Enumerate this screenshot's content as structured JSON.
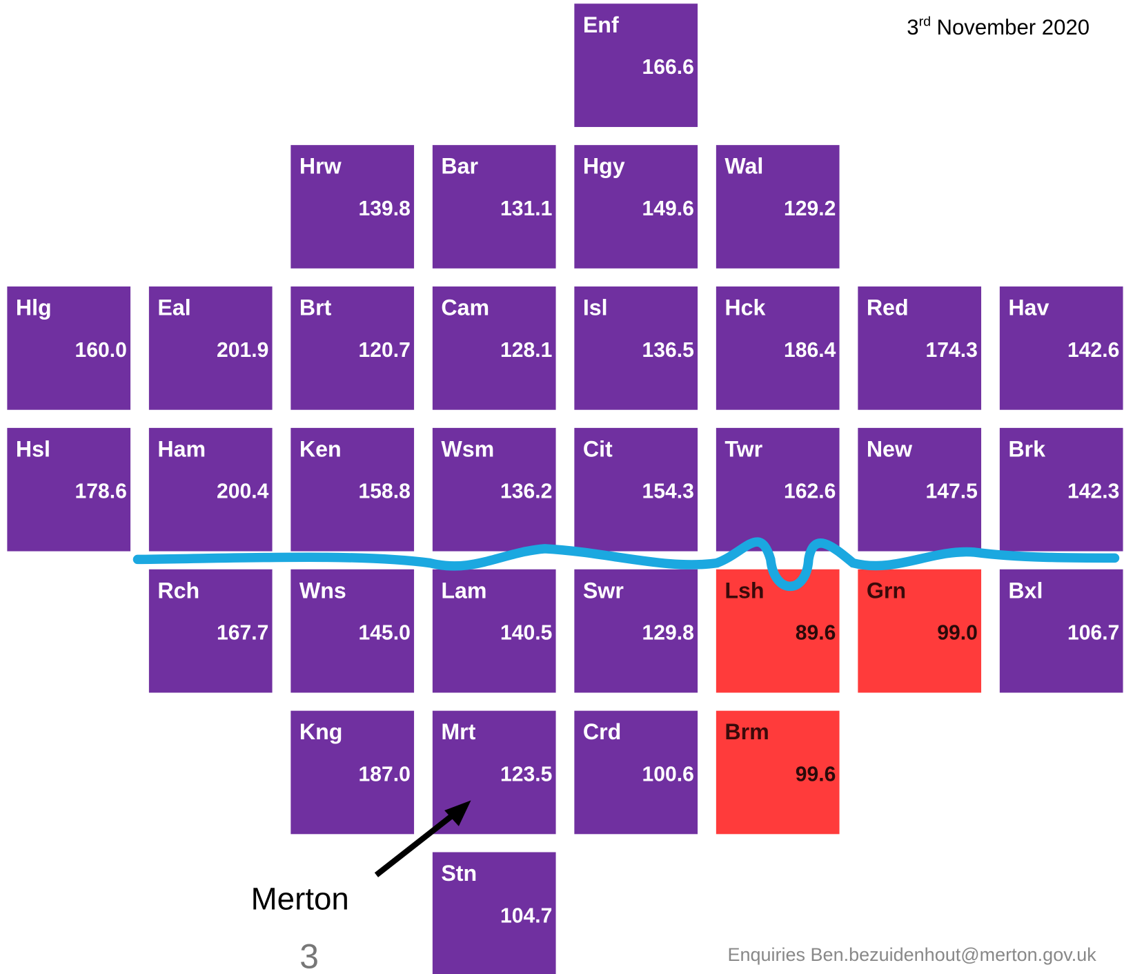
{
  "header": {
    "date": {
      "day": "3",
      "ordinal": "rd",
      "rest": "November 2020"
    }
  },
  "tiles": [
    {
      "code": "Enf",
      "value": "166.6",
      "color": "#7030a0"
    },
    {
      "code": "Hrw",
      "value": "139.8",
      "color": "#7030a0"
    },
    {
      "code": "Bar",
      "value": "131.1",
      "color": "#7030a0"
    },
    {
      "code": "Hgy",
      "value": "149.6",
      "color": "#7030a0"
    },
    {
      "code": "Wal",
      "value": "129.2",
      "color": "#7030a0"
    },
    {
      "code": "Hlg",
      "value": "160.0",
      "color": "#7030a0"
    },
    {
      "code": "Eal",
      "value": "201.9",
      "color": "#7030a0"
    },
    {
      "code": "Brt",
      "value": "120.7",
      "color": "#7030a0"
    },
    {
      "code": "Cam",
      "value": "128.1",
      "color": "#7030a0"
    },
    {
      "code": "Isl",
      "value": "136.5",
      "color": "#7030a0"
    },
    {
      "code": "Hck",
      "value": "186.4",
      "color": "#7030a0"
    },
    {
      "code": "Red",
      "value": "174.3",
      "color": "#7030a0"
    },
    {
      "code": "Hav",
      "value": "142.6",
      "color": "#7030a0"
    },
    {
      "code": "Hsl",
      "value": "178.6",
      "color": "#7030a0"
    },
    {
      "code": "Ham",
      "value": "200.4",
      "color": "#7030a0"
    },
    {
      "code": "Ken",
      "value": "158.8",
      "color": "#7030a0"
    },
    {
      "code": "Wsm",
      "value": "136.2",
      "color": "#7030a0"
    },
    {
      "code": "Cit",
      "value": "154.3",
      "color": "#7030a0"
    },
    {
      "code": "Twr",
      "value": "162.6",
      "color": "#7030a0"
    },
    {
      "code": "New",
      "value": "147.5",
      "color": "#7030a0"
    },
    {
      "code": "Brk",
      "value": "142.3",
      "color": "#7030a0"
    },
    {
      "code": "Rch",
      "value": "167.7",
      "color": "#7030a0"
    },
    {
      "code": "Wns",
      "value": "145.0",
      "color": "#7030a0"
    },
    {
      "code": "Lam",
      "value": "140.5",
      "color": "#7030a0"
    },
    {
      "code": "Swr",
      "value": "129.8",
      "color": "#7030a0"
    },
    {
      "code": "Lsh",
      "value": "89.6",
      "color": "#ff3b3b"
    },
    {
      "code": "Grn",
      "value": "99.0",
      "color": "#ff3b3b"
    },
    {
      "code": "Bxl",
      "value": "106.7",
      "color": "#7030a0"
    },
    {
      "code": "Kng",
      "value": "187.0",
      "color": "#7030a0"
    },
    {
      "code": "Mrt",
      "value": "123.5",
      "color": "#7030a0"
    },
    {
      "code": "Crd",
      "value": "100.6",
      "color": "#7030a0"
    },
    {
      "code": "Brm",
      "value": "99.6",
      "color": "#ff3b3b"
    },
    {
      "code": "Stn",
      "value": "104.7",
      "color": "#7030a0"
    }
  ],
  "annotation": "Merton",
  "footer": {
    "page": "3",
    "contact": "Enquiries Ben.bezuidenhout@merton.gov.uk"
  }
}
